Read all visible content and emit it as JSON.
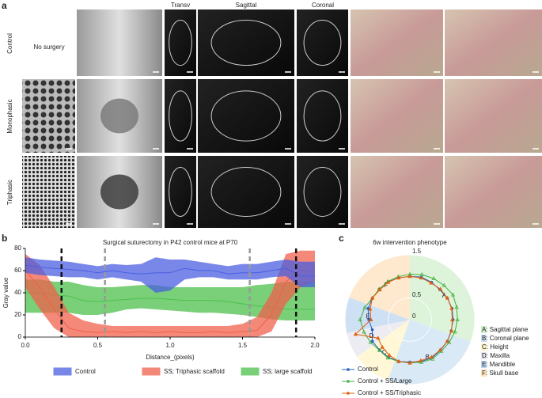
{
  "panel_a": {
    "label": "a",
    "column_headers": [
      "Transv",
      "Sagittal",
      "Coronal"
    ],
    "rows": [
      {
        "label": "Control",
        "note": "No surgery"
      },
      {
        "label": "Monophasic"
      },
      {
        "label": "Triphasic"
      }
    ]
  },
  "chart_data": [
    {
      "panel": "b",
      "type": "band",
      "title": "Surgical suturectomy in P42 control mice at P70",
      "xlabel": "Distance_(pixels)",
      "ylabel": "Gray value",
      "x": [
        0,
        0.1,
        0.2,
        0.3,
        0.4,
        0.5,
        0.6,
        0.7,
        0.8,
        0.9,
        1.0,
        1.1,
        1.2,
        1.3,
        1.4,
        1.5,
        1.6,
        1.7,
        1.8,
        1.9,
        2.0
      ],
      "xlim": [
        0,
        2
      ],
      "ylim": [
        0,
        80
      ],
      "xticks": [
        {
          "value": 0,
          "label": "0.0"
        },
        0.5,
        {
          "value": 1,
          "label": "1.0"
        },
        1.5,
        {
          "value": 2,
          "label": "2.0"
        }
      ],
      "yticks": [
        0,
        20,
        40,
        60,
        80
      ],
      "series": [
        {
          "name": "SS; large scaffold",
          "color": "#4cc04c",
          "values": [
            40,
            40,
            38,
            37,
            33,
            32,
            33,
            34,
            35,
            35,
            34,
            33,
            33,
            33,
            32,
            30,
            28,
            27,
            25,
            25,
            25
          ],
          "lower": [
            22,
            22,
            22,
            22,
            20,
            20,
            22,
            25,
            26,
            25,
            24,
            23,
            22,
            22,
            21,
            20,
            18,
            16,
            15,
            15,
            15
          ],
          "upper": [
            52,
            52,
            50,
            50,
            47,
            45,
            45,
            46,
            47,
            47,
            45,
            45,
            45,
            45,
            45,
            45,
            47,
            48,
            50,
            50,
            50
          ]
        },
        {
          "name": "SS; Triphasic scaffold",
          "color": "#f0604c",
          "values": [
            60,
            45,
            25,
            8,
            5,
            4,
            5,
            4,
            5,
            4,
            5,
            4,
            4,
            5,
            4,
            5,
            6,
            20,
            50,
            60,
            60
          ],
          "lower": [
            45,
            25,
            8,
            0,
            0,
            0,
            0,
            0,
            0,
            0,
            0,
            0,
            0,
            0,
            0,
            0,
            0,
            5,
            30,
            45,
            50
          ],
          "upper": [
            75,
            65,
            45,
            22,
            15,
            12,
            10,
            10,
            10,
            10,
            10,
            10,
            10,
            10,
            10,
            12,
            18,
            40,
            75,
            78,
            78
          ]
        },
        {
          "name": "Control",
          "color": "#4b5fe0",
          "values": [
            65,
            63,
            62,
            61,
            60,
            58,
            60,
            58,
            57,
            58,
            58,
            62,
            60,
            60,
            57,
            58,
            58,
            60,
            62,
            55,
            55
          ],
          "lower": [
            58,
            56,
            55,
            54,
            54,
            52,
            54,
            52,
            50,
            40,
            42,
            52,
            54,
            54,
            52,
            52,
            52,
            54,
            55,
            45,
            45
          ],
          "upper": [
            72,
            70,
            69,
            68,
            66,
            64,
            66,
            65,
            66,
            72,
            70,
            70,
            68,
            66,
            64,
            66,
            66,
            68,
            70,
            68,
            68
          ]
        }
      ],
      "vlines": [
        {
          "x": 0.25,
          "color": "#111111"
        },
        {
          "x": 0.55,
          "color": "#999999"
        },
        {
          "x": 1.55,
          "color": "#999999"
        },
        {
          "x": 1.87,
          "color": "#111111"
        }
      ]
    },
    {
      "panel": "c",
      "type": "radar",
      "title": "6w intervention phenotype",
      "rlim": [
        0,
        1.5
      ],
      "rticks": [
        0,
        0.5,
        1.5
      ],
      "angles": [
        0,
        15,
        30,
        45,
        60,
        75,
        90,
        105,
        120,
        135,
        150,
        165,
        180,
        195,
        210,
        225,
        240,
        255,
        270,
        285,
        300,
        315,
        330,
        345
      ],
      "series": [
        {
          "name": "Control",
          "color": "#2060c0",
          "marker": "circle",
          "values": [
            1.0,
            1.02,
            1.0,
            0.98,
            1.0,
            1.01,
            1.0,
            0.99,
            1.0,
            1.0,
            1.02,
            1.0,
            0.98,
            1.0,
            1.0,
            0.99,
            1.0,
            0.9,
            0.95,
            1.0,
            1.0,
            1.0,
            1.01,
            1.0
          ]
        },
        {
          "name": "Control + SS/Large",
          "color": "#40b040",
          "marker": "triangle",
          "values": [
            1.05,
            1.08,
            1.1,
            1.12,
            1.15,
            1.12,
            1.1,
            1.08,
            1.05,
            1.03,
            1.05,
            1.02,
            1.0,
            1.0,
            1.02,
            1.0,
            1.05,
            1.1,
            1.15,
            1.08,
            1.0,
            1.0,
            1.02,
            1.03
          ]
        },
        {
          "name": "Control + SS/Triphasic",
          "color": "#e06010",
          "marker": "triangle",
          "values": [
            1.0,
            1.0,
            0.98,
            1.0,
            1.0,
            1.0,
            0.98,
            1.0,
            1.0,
            0.99,
            1.0,
            0.98,
            1.0,
            1.0,
            0.95,
            0.9,
            0.85,
            1.3,
            0.9,
            0.95,
            1.0,
            0.98,
            1.0,
            1.0
          ]
        }
      ],
      "sectors": [
        {
          "letter": "A",
          "legend": "A: Sagittal plane",
          "color": "#cfeecb"
        },
        {
          "letter": "B",
          "legend": "B: Coronal plane",
          "color": "#c9dff2"
        },
        {
          "letter": "C",
          "legend": "C: Height",
          "color": "#fff3c4"
        },
        {
          "letter": "D",
          "legend": "D: Maxilla",
          "color": "#e4e4ec"
        },
        {
          "letter": "E",
          "legend": "E: Mandible",
          "color": "#b9d3ee"
        },
        {
          "letter": "F",
          "legend": "F: Skull base",
          "color": "#fde0bb"
        }
      ]
    }
  ]
}
